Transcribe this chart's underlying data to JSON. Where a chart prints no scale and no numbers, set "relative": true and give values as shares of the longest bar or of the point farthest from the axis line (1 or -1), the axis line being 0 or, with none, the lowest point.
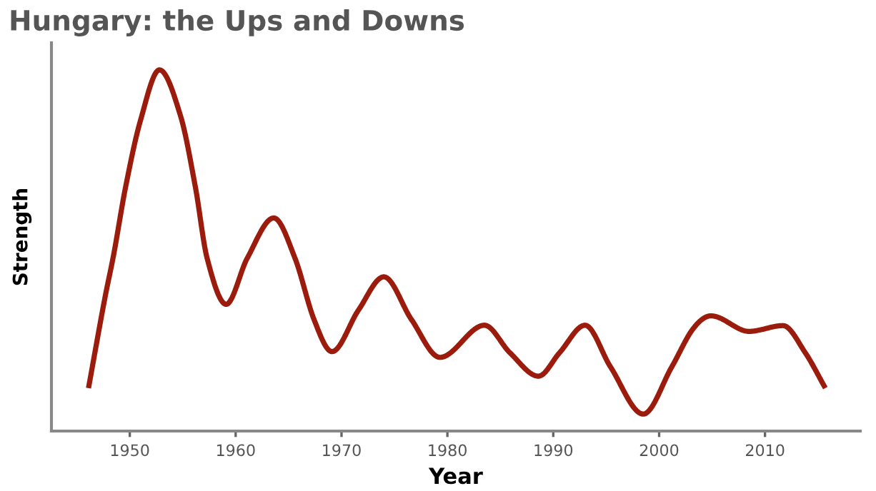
{
  "chart_data": {
    "type": "line",
    "title": "Hungary: the Ups and Downs",
    "xlabel": "Year",
    "ylabel": "Strength",
    "relative": true,
    "xlim": [
      1942.6,
      2019
    ],
    "xticks": [
      1950,
      1960,
      1970,
      1980,
      1990,
      2000,
      2010
    ],
    "grid": false,
    "legend": false,
    "marker": "none",
    "line_style": "solid",
    "series": [
      {
        "color": "#9b1c0c",
        "x": [
          1946.1,
          1947.6,
          1948.5,
          1949.6,
          1951.0,
          1952.8,
          1954.8,
          1956.2,
          1957.3,
          1959.1,
          1961.1,
          1963.6,
          1965.6,
          1967.4,
          1969.1,
          1971.6,
          1974.0,
          1976.6,
          1979.3,
          1983.5,
          1985.9,
          1988.6,
          1990.6,
          1993.0,
          1995.4,
          1998.5,
          2001.2,
          2003.2,
          2004.9,
          2008.5,
          2011.7,
          2013.8,
          2015.7
        ],
        "values": [
          0.119,
          0.361,
          0.492,
          0.675,
          0.859,
          1.0,
          0.872,
          0.675,
          0.479,
          0.351,
          0.479,
          0.59,
          0.479,
          0.309,
          0.22,
          0.335,
          0.427,
          0.309,
          0.204,
          0.293,
          0.217,
          0.152,
          0.217,
          0.293,
          0.178,
          0.047,
          0.178,
          0.283,
          0.319,
          0.276,
          0.292,
          0.217,
          0.119
        ]
      }
    ]
  }
}
